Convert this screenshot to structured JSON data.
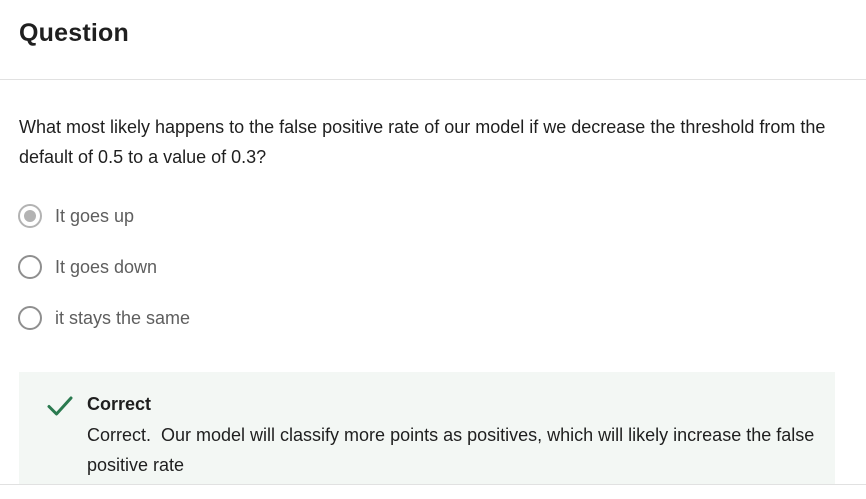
{
  "header": {
    "title": "Question"
  },
  "question": {
    "text": "What most likely happens to the false positive rate of our model if we decrease the threshold from the default of 0.5 to a value of 0.3?"
  },
  "options": [
    {
      "label": "It goes up",
      "selected": true
    },
    {
      "label": "It goes down",
      "selected": false
    },
    {
      "label": "it stays the same",
      "selected": false
    }
  ],
  "feedback": {
    "title": "Correct",
    "text": "Correct.  Our model will classify more points as positives, which will likely increase the false positive rate",
    "icon": "checkmark-icon",
    "icon_color": "#2a7a4f",
    "background_color": "#f3f7f4"
  }
}
